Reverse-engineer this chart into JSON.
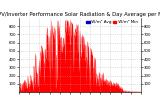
{
  "title": "Solar PV/Inverter Performance Solar Radiation & Day Average per Minute",
  "background_color": "#ffffff",
  "plot_bg_color": "#ffffff",
  "grid_color": "#aaaaaa",
  "bar_color": "#ff0000",
  "legend": [
    {
      "label": " W/m² Avg",
      "color": "#0000cc"
    },
    {
      "label": " W/m² Min",
      "color": "#ff0000"
    }
  ],
  "ylim": [
    0,
    900
  ],
  "yticks": [
    100,
    200,
    300,
    400,
    500,
    600,
    700,
    800
  ],
  "title_fontsize": 3.8,
  "tick_fontsize": 2.8,
  "legend_fontsize": 3.0
}
